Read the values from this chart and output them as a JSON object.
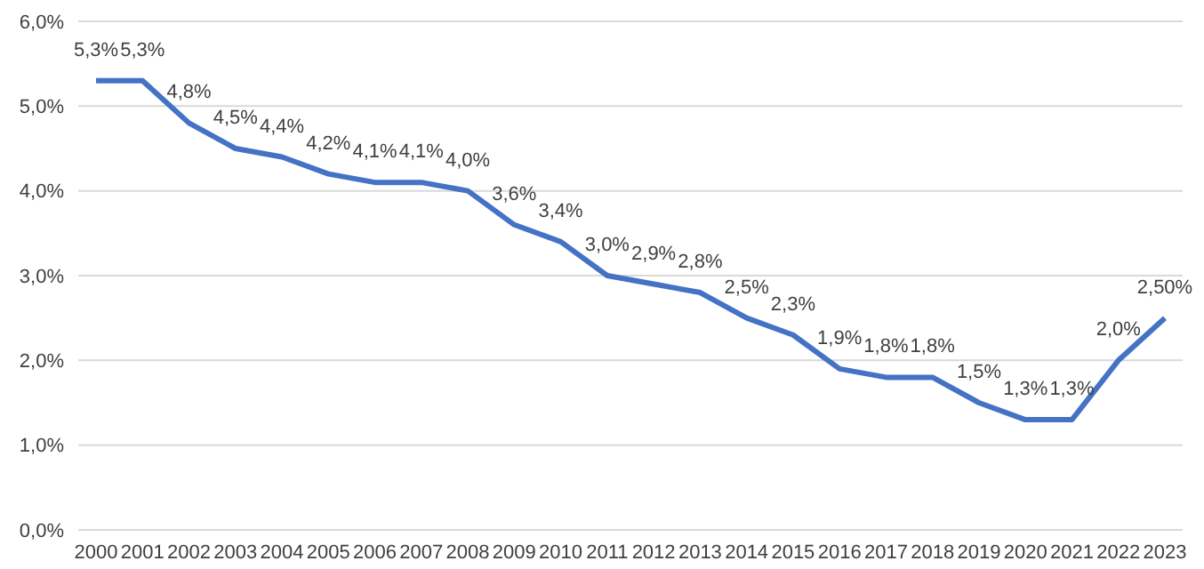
{
  "chart_data": {
    "type": "line",
    "categories": [
      "2000",
      "2001",
      "2002",
      "2003",
      "2004",
      "2005",
      "2006",
      "2007",
      "2008",
      "2009",
      "2010",
      "2011",
      "2012",
      "2013",
      "2014",
      "2015",
      "2016",
      "2017",
      "2018",
      "2019",
      "2020",
      "2021",
      "2022",
      "2023"
    ],
    "series": [
      {
        "color": "#4472c4",
        "values": [
          5.3,
          5.3,
          4.8,
          4.5,
          4.4,
          4.2,
          4.1,
          4.1,
          4.0,
          3.6,
          3.4,
          3.0,
          2.9,
          2.8,
          2.5,
          2.3,
          1.9,
          1.8,
          1.8,
          1.5,
          1.3,
          1.3,
          2.0,
          2.5
        ],
        "value_labels": [
          "5,3%",
          "5,3%",
          "4,8%",
          "4,5%",
          "4,4%",
          "4,2%",
          "4,1%",
          "4,1%",
          "4,0%",
          "3,6%",
          "3,4%",
          "3,0%",
          "2,9%",
          "2,8%",
          "2,5%",
          "2,3%",
          "1,9%",
          "1,8%",
          "1,8%",
          "1,5%",
          "1,3%",
          "1,3%",
          "2,0%",
          "2,50%"
        ]
      }
    ],
    "ylim": [
      0,
      6
    ],
    "yticks": [
      {
        "value": 0,
        "label": "0,0%"
      },
      {
        "value": 1,
        "label": "1,0%"
      },
      {
        "value": 2,
        "label": "2,0%"
      },
      {
        "value": 3,
        "label": "3,0%"
      },
      {
        "value": 4,
        "label": "4,0%"
      },
      {
        "value": 5,
        "label": "5,0%"
      },
      {
        "value": 6,
        "label": "6,0%"
      }
    ],
    "grid": "y",
    "marker": "none",
    "line_style": "solid",
    "legend": false
  }
}
